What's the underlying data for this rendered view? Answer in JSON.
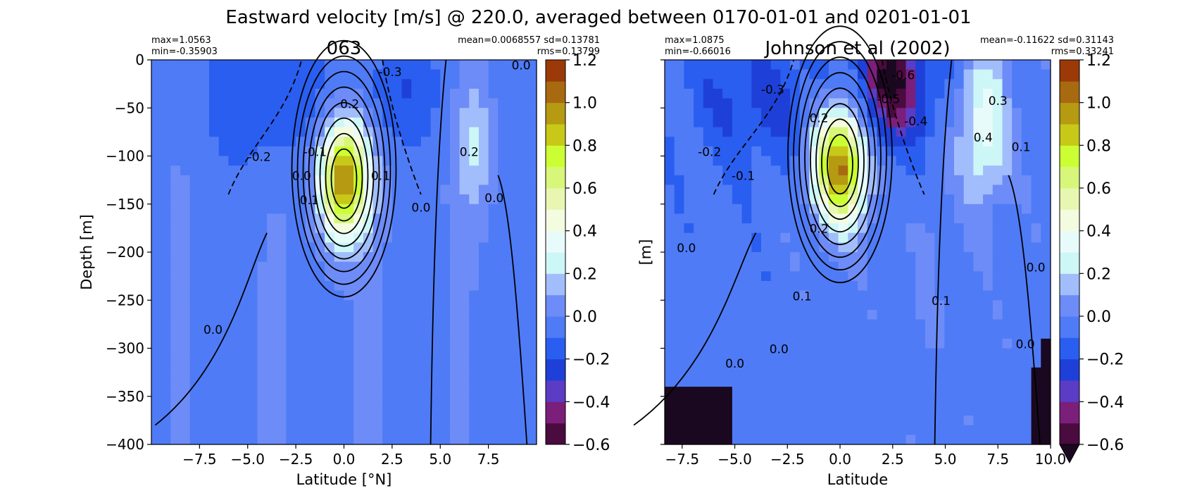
{
  "figure": {
    "suptitle": "Eastward velocity [m/s] @ 220.0, averaged between 0170-01-01 and 0201-01-01"
  },
  "chart_data": [
    {
      "type": "heatmap",
      "title": "063",
      "xlabel": "Latitude [°N]",
      "ylabel": "Depth [m]",
      "xlim": [
        -10,
        10
      ],
      "ylim": [
        -400,
        0
      ],
      "x_ticks": [
        -7.5,
        -5.0,
        -2.5,
        0.0,
        2.5,
        5.0,
        7.5
      ],
      "x_tick_labels": [
        "−7.5",
        "−5.0",
        "−2.5",
        "0.0",
        "2.5",
        "5.0",
        "7.5"
      ],
      "y_ticks": [
        0,
        -50,
        -100,
        -150,
        -200,
        -250,
        -300,
        -350,
        -400
      ],
      "y_tick_labels": [
        "0",
        "−50",
        "−100",
        "−150",
        "−200",
        "−250",
        "−300",
        "−350",
        "−400"
      ],
      "stats_left": [
        "max=1.0563",
        "min=-0.35903"
      ],
      "stats_right": [
        "mean=0.0068557 sd=0.13781",
        "rms=0.13799"
      ],
      "jet_peak": 1.05,
      "jet_depth": -125,
      "contour_labels": [
        "0.2",
        "0.1",
        "-0.1",
        "-0.2",
        "-0.3",
        "0.0",
        "0.0",
        "0.0",
        "0.0",
        "0.1",
        "0.2",
        "0.0"
      ],
      "colorbar": {
        "ticks": [
          1.2,
          1.0,
          0.8,
          0.6,
          0.4,
          0.2,
          0.0,
          -0.2,
          -0.4,
          -0.6
        ],
        "tick_labels": [
          "1.2",
          "1.0",
          "0.8",
          "0.6",
          "0.4",
          "0.2",
          "0.0",
          "−0.2",
          "−0.4",
          "−0.6"
        ]
      }
    },
    {
      "type": "heatmap",
      "title": "Johnson et al (2002)",
      "xlabel": "Latitude",
      "ylabel": "[m]",
      "xlim": [
        -8.33,
        10.0
      ],
      "ylim": [
        -400,
        0
      ],
      "x_ticks": [
        -7.5,
        -5.0,
        -2.5,
        0.0,
        2.5,
        5.0,
        7.5,
        10.0
      ],
      "x_tick_labels": [
        "−7.5",
        "−5.0",
        "−2.5",
        "0.0",
        "2.5",
        "5.0",
        "7.5",
        "10.0"
      ],
      "y_ticks": [
        0,
        -50,
        -100,
        -150,
        -200,
        -250,
        -300,
        -350,
        -400
      ],
      "stats_left": [
        "max=1.0875",
        "min=-0.66016"
      ],
      "stats_right": [
        "mean=-0.11622 sd=0.31143",
        "rms=0.33241"
      ],
      "jet_peak": 1.09,
      "jet_depth": -110,
      "contour_labels": [
        "-0.3",
        "-0.6",
        "-0.5",
        "-0.4",
        "0.3",
        "0.4",
        "0.2",
        "0.1",
        "-0.2",
        "-0.1",
        "0.0",
        "0.1",
        "0.1",
        "0.0",
        "0.0",
        "0.0",
        "0.0",
        "0.2"
      ],
      "colorbar": {
        "ticks": [
          1.2,
          1.0,
          0.8,
          0.6,
          0.4,
          0.2,
          0.0,
          -0.2,
          -0.4,
          -0.6
        ],
        "tick_labels": [
          "1.2",
          "1.0",
          "0.8",
          "0.6",
          "0.4",
          "0.2",
          "0.0",
          "−0.2",
          "−0.4",
          "−0.6"
        ],
        "extend": "min"
      }
    }
  ],
  "colormap": {
    "levels": [
      -0.6,
      -0.5,
      -0.4,
      -0.3,
      -0.2,
      -0.1,
      0.0,
      0.1,
      0.2,
      0.3,
      0.4,
      0.5,
      0.6,
      0.7,
      0.8,
      0.9,
      1.0,
      1.1,
      1.2
    ],
    "colors": [
      "#4a0b3f",
      "#7b1f7a",
      "#5b3cc4",
      "#1e40d8",
      "#2a5ef0",
      "#4f7bf6",
      "#6d8cf7",
      "#a2bdfb",
      "#cdf6f7",
      "#e8fbfb",
      "#f4fce0",
      "#e7f7b2",
      "#d8f77a",
      "#ccff33",
      "#c8c818",
      "#b59a12",
      "#a86a10",
      "#9b3a08",
      "#6b0a0a"
    ],
    "under_color": "#1a0820"
  }
}
